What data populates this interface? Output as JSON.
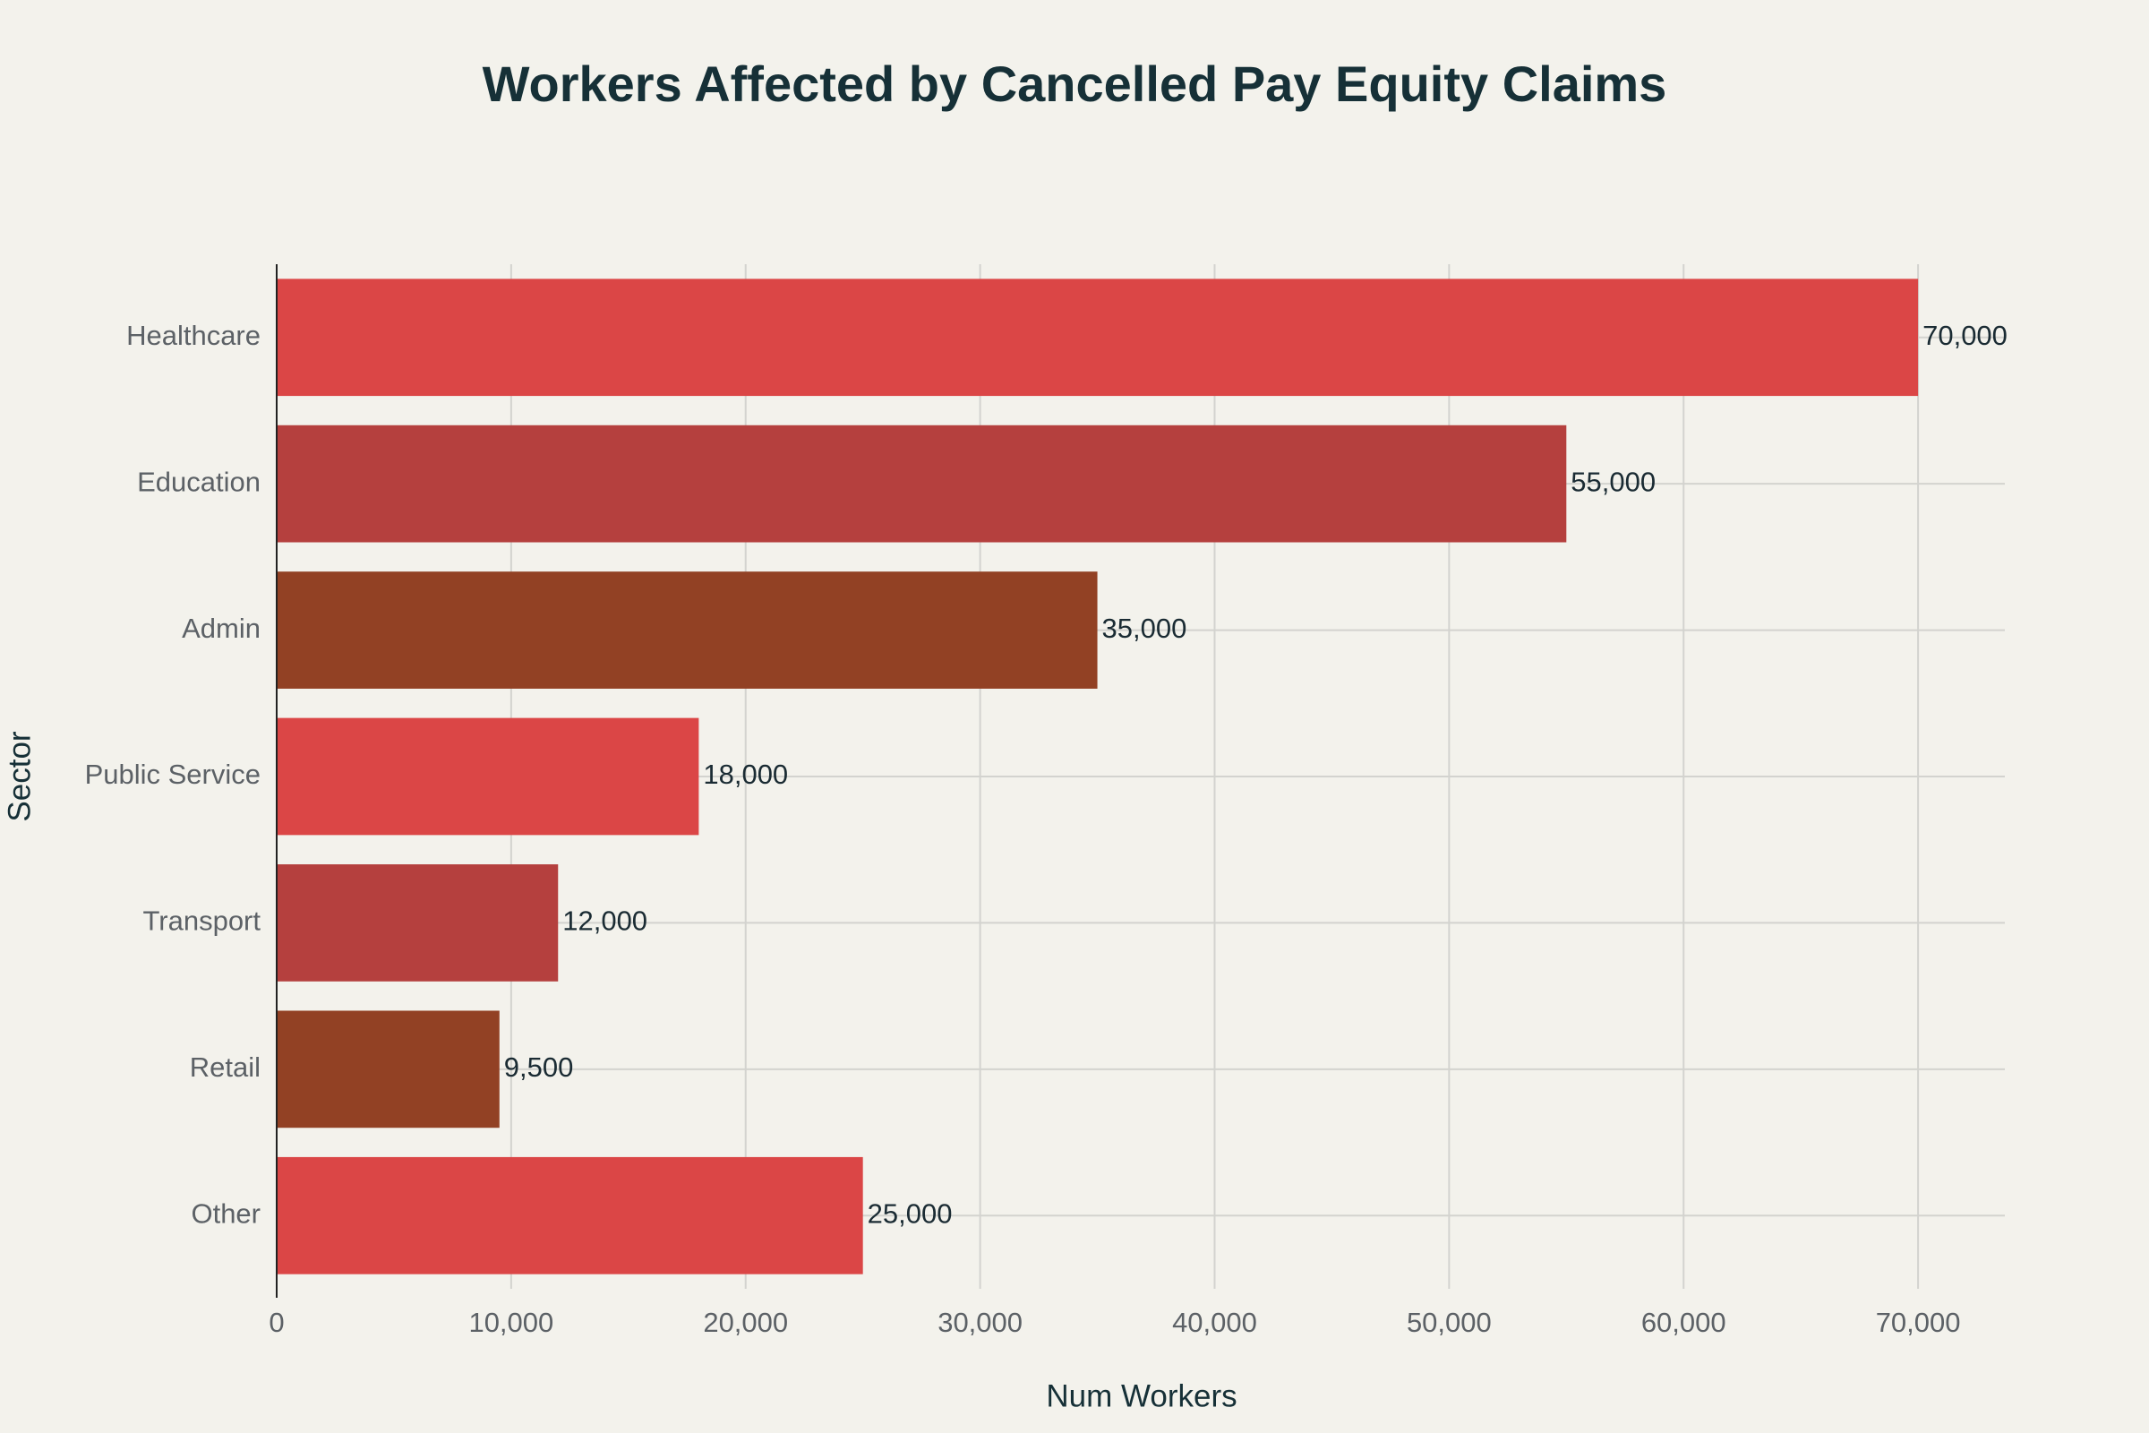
{
  "chart_data": {
    "type": "bar",
    "orientation": "horizontal",
    "title": "Workers Affected by Cancelled Pay Equity Claims",
    "x_label": "Num Workers",
    "y_label": "Sector",
    "categories": [
      "Healthcare",
      "Education",
      "Admin",
      "Public Service",
      "Transport",
      "Retail",
      "Other"
    ],
    "values": [
      70000,
      55000,
      35000,
      18000,
      12000,
      9500,
      25000
    ],
    "value_labels": [
      "70,000",
      "55,000",
      "35,000",
      "18,000",
      "12,000",
      "9,500",
      "25,000"
    ],
    "colors": [
      "#db4646",
      "#b5403e",
      "#924124",
      "#db4646",
      "#b5403e",
      "#924124",
      "#db4646"
    ],
    "xlim": [
      0,
      73700
    ],
    "xticks": [
      0,
      {
        "value": 10000,
        "label": "10,000"
      },
      {
        "value": 20000,
        "label": "20,000"
      },
      {
        "value": 30000,
        "label": "30,000"
      },
      {
        "value": 40000,
        "label": "40,000"
      },
      {
        "value": 50000,
        "label": "50,000"
      },
      {
        "value": 60000,
        "label": "60,000"
      },
      {
        "value": 70000,
        "label": "70,000"
      }
    ],
    "grid": true
  }
}
